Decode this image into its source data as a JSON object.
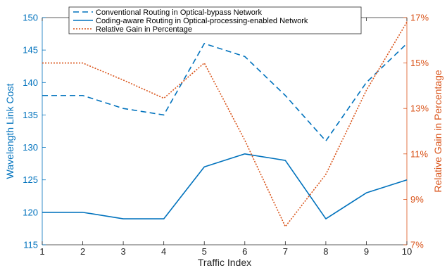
{
  "chart_data": {
    "type": "line",
    "x": [
      1,
      2,
      3,
      4,
      5,
      6,
      7,
      8,
      9,
      10
    ],
    "xlabel": "Traffic Index",
    "xlim": [
      1,
      10
    ],
    "left_axis": {
      "label": "Wavelength Link Cost",
      "lim": [
        115,
        150
      ],
      "ticks": [
        115,
        120,
        125,
        130,
        135,
        140,
        145,
        150
      ],
      "color": "#0072BD"
    },
    "right_axis": {
      "label": "Relative Gain in Percentage",
      "lim": [
        7,
        17
      ],
      "ticks": [
        7,
        9,
        11,
        13,
        15,
        17
      ],
      "tick_labels": [
        "7%",
        "9%",
        "11%",
        "13%",
        "15%",
        "17%"
      ],
      "color": "#D95319"
    },
    "series": [
      {
        "name": "Conventional Routing in Optical-bypass Network",
        "axis": "left",
        "style": "dashed",
        "color": "#0072BD",
        "values": [
          138,
          138,
          136,
          135,
          146,
          144,
          138,
          131,
          140,
          146
        ]
      },
      {
        "name": "Coding-aware Routing in Optical-processing-enabled Network",
        "axis": "left",
        "style": "solid",
        "color": "#0072BD",
        "values": [
          120,
          120,
          119,
          119,
          127,
          129,
          128,
          119,
          123,
          125
        ]
      },
      {
        "name": "Relative Gain in Percentage",
        "axis": "right",
        "style": "dotted",
        "color": "#D95319",
        "values": [
          15,
          15,
          14.25,
          13.45,
          15,
          11.6,
          7.8,
          10.1,
          13.8,
          16.8
        ]
      }
    ],
    "legend_position": "top-center",
    "grid": false
  }
}
